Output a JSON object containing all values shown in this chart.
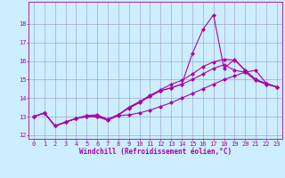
{
  "xlabel": "Windchill (Refroidissement éolien,°C)",
  "bg_color": "#cceeff",
  "line_color": "#aa00aa",
  "grid_color": "#9999bb",
  "xlim": [
    -0.5,
    23.5
  ],
  "ylim": [
    11.8,
    19.2
  ],
  "yticks": [
    12,
    13,
    14,
    15,
    16,
    17,
    18
  ],
  "xticks": [
    0,
    1,
    2,
    3,
    4,
    5,
    6,
    7,
    8,
    9,
    10,
    11,
    12,
    13,
    14,
    15,
    16,
    17,
    18,
    19,
    20,
    21,
    22,
    23
  ],
  "series": [
    [
      13.0,
      13.2,
      12.5,
      12.7,
      12.9,
      13.0,
      13.0,
      12.8,
      13.05,
      13.1,
      13.2,
      13.35,
      13.55,
      13.75,
      14.0,
      14.25,
      14.5,
      14.75,
      15.0,
      15.2,
      15.4,
      15.5,
      14.8,
      14.6
    ],
    [
      13.0,
      13.2,
      12.5,
      12.7,
      12.9,
      13.0,
      13.0,
      12.85,
      13.1,
      13.45,
      13.75,
      14.1,
      14.4,
      14.55,
      14.75,
      15.0,
      15.3,
      15.6,
      15.8,
      15.5,
      15.4,
      14.95,
      14.75,
      14.6
    ],
    [
      13.0,
      13.2,
      12.5,
      12.7,
      12.9,
      13.05,
      13.05,
      12.85,
      13.1,
      13.5,
      13.8,
      14.15,
      14.45,
      14.75,
      14.95,
      15.3,
      15.7,
      15.95,
      16.1,
      16.05,
      15.5,
      15.0,
      14.75,
      14.6
    ],
    [
      13.0,
      13.2,
      12.5,
      12.7,
      12.9,
      13.05,
      13.1,
      12.85,
      13.1,
      13.5,
      13.8,
      14.1,
      14.4,
      14.55,
      14.75,
      16.4,
      17.7,
      18.5,
      15.6,
      16.1,
      15.5,
      15.0,
      14.8,
      14.6
    ]
  ],
  "marker": "D",
  "markersize": 2.0,
  "linewidth": 0.8,
  "label_fontsize": 5.5,
  "tick_fontsize": 5.0
}
